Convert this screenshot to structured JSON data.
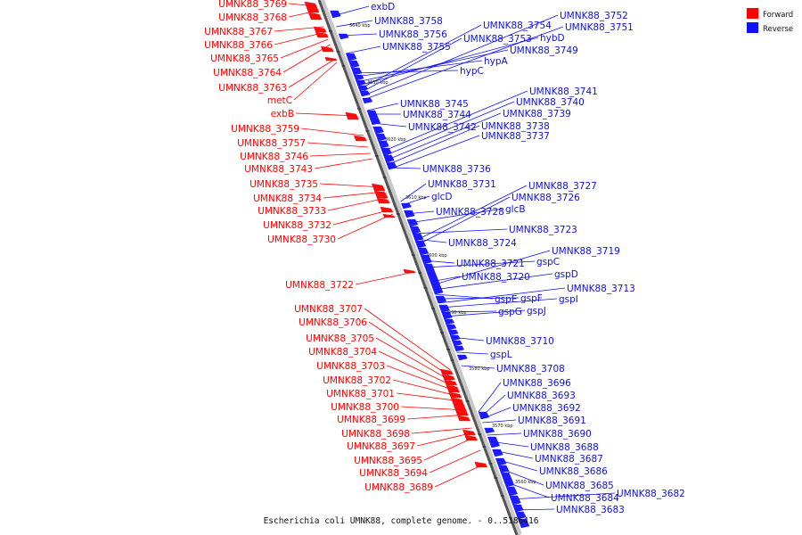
{
  "caption": "Escherichia coli UMNK88, complete genome. - 0..5186416",
  "legend": {
    "forward_label": "Forward",
    "reverse_label": "Reverse",
    "forward_color": "#ff0000",
    "reverse_color": "#1010ff"
  },
  "ticks": [
    "3640 kbp",
    "3630 kbp",
    "3620 kbp",
    "3610 kbp",
    "3600 kbp",
    "3590 kbp",
    "3580 kbp",
    "3570 kbp",
    "3560 kbp"
  ],
  "forward_labels": [
    "UMNK88_3769",
    "UMNK88_3768",
    "UMNK88_3767",
    "UMNK88_3766",
    "UMNK88_3765",
    "UMNK88_3764",
    "UMNK88_3763",
    "metC",
    "exbB",
    "UMNK88_3759",
    "UMNK88_3757",
    "UMNK88_3746",
    "UMNK88_3743",
    "UMNK88_3735",
    "UMNK88_3734",
    "UMNK88_3733",
    "UMNK88_3732",
    "UMNK88_3730",
    "UMNK88_3722",
    "UMNK88_3707",
    "UMNK88_3706",
    "UMNK88_3705",
    "UMNK88_3704",
    "UMNK88_3703",
    "UMNK88_3702",
    "UMNK88_3701",
    "UMNK88_3700",
    "UMNK88_3699",
    "UMNK88_3698",
    "UMNK88_3697",
    "UMNK88_3695",
    "UMNK88_3694",
    "UMNK88_3689"
  ],
  "reverse_labels": [
    "exbD",
    "UMNK88_3758",
    "UMNK88_3756",
    "UMNK88_3755",
    "UMNK88_3752",
    "UMNK88_3754",
    "UMNK88_3751",
    "UMNK88_3753",
    "hybD",
    "UMNK88_3749",
    "hypA",
    "hypC",
    "UMNK88_3741",
    "UMNK88_3745",
    "UMNK88_3740",
    "UMNK88_3744",
    "UMNK88_3739",
    "UMNK88_3742",
    "UMNK88_3738",
    "UMNK88_3737",
    "UMNK88_3736",
    "UMNK88_3731",
    "UMNK88_3727",
    "glcD",
    "UMNK88_3726",
    "UMNK88_3728",
    "glcB",
    "UMNK88_3723",
    "UMNK88_3724",
    "UMNK88_3719",
    "UMNK88_3721",
    "gspC",
    "UMNK88_3720",
    "gspD",
    "UMNK88_3713",
    "gspE",
    "gspF",
    "gspI",
    "gspG",
    "gspJ",
    "UMNK88_3710",
    "gspL",
    "UMNK88_3708",
    "UMNK88_3696",
    "UMNK88_3693",
    "UMNK88_3692",
    "UMNK88_3691",
    "UMNK88_3690",
    "UMNK88_3688",
    "UMNK88_3687",
    "UMNK88_3686",
    "UMNK88_3685",
    "UMNK88_3682",
    "UMNK88_3684",
    "UMNK88_3683"
  ]
}
